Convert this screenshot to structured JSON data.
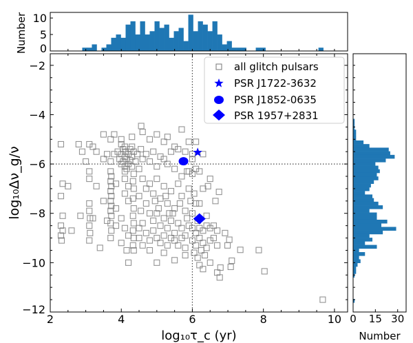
{
  "chart_data": [
    {
      "id": "main",
      "type": "scatter",
      "xlabel": "log₁₀τ_c (yr)",
      "ylabel": "log₁₀Δν_g/ν",
      "xlim": [
        2,
        10.37
      ],
      "ylim": [
        -12,
        -1.53
      ],
      "xticks": [
        2,
        4,
        6,
        8,
        10
      ],
      "xtick_labels": [
        "2",
        "4",
        "6",
        "8",
        "10"
      ],
      "yticks": [
        -2,
        -4,
        -6,
        -8,
        -10,
        -12
      ],
      "ytick_labels": [
        "−2",
        "−4",
        "−6",
        "−8",
        "−10",
        "−12"
      ],
      "reference_lines": {
        "x": 6,
        "y": -6
      },
      "legend_position": "top-right",
      "series": [
        {
          "name": "all glitch pulsars",
          "marker": "open-square",
          "color": "#808080",
          "points": [
            [
              4.56,
              -4.46
            ],
            [
              2.8,
              -5.2
            ],
            [
              3.1,
              -5.2
            ],
            [
              3.5,
              -4.8
            ],
            [
              3.7,
              -5.0
            ],
            [
              3.8,
              -4.8
            ],
            [
              4.0,
              -5.0
            ],
            [
              4.1,
              -5.3
            ],
            [
              4.3,
              -4.9
            ],
            [
              4.6,
              -4.7
            ],
            [
              4.8,
              -5.0
            ],
            [
              5.0,
              -4.8
            ],
            [
              5.2,
              -5.1
            ],
            [
              5.3,
              -4.9
            ],
            [
              5.5,
              -5.3
            ],
            [
              5.7,
              -4.6
            ],
            [
              5.9,
              -5.1
            ],
            [
              3.9,
              -5.5
            ],
            [
              3.95,
              -5.8
            ],
            [
              4.0,
              -5.6
            ],
            [
              4.0,
              -6.0
            ],
            [
              4.05,
              -5.4
            ],
            [
              4.05,
              -5.9
            ],
            [
              4.1,
              -5.7
            ],
            [
              4.1,
              -6.1
            ],
            [
              4.12,
              -5.5
            ],
            [
              4.15,
              -5.8
            ],
            [
              4.15,
              -6.2
            ],
            [
              4.2,
              -5.6
            ],
            [
              4.2,
              -6.0
            ],
            [
              4.25,
              -5.4
            ],
            [
              4.25,
              -5.85
            ],
            [
              4.3,
              -5.7
            ],
            [
              4.3,
              -6.1
            ],
            [
              4.35,
              -5.5
            ],
            [
              4.4,
              -5.9
            ],
            [
              4.45,
              -5.6
            ],
            [
              4.5,
              -6.2
            ],
            [
              4.55,
              -5.4
            ],
            [
              4.6,
              -5.8
            ],
            [
              4.7,
              -5.6
            ],
            [
              4.8,
              -5.9
            ],
            [
              4.9,
              -5.5
            ],
            [
              5.0,
              -6.1
            ],
            [
              5.1,
              -5.7
            ],
            [
              5.2,
              -5.8
            ],
            [
              5.3,
              -6.0
            ],
            [
              5.4,
              -5.5
            ],
            [
              5.5,
              -6.2
            ],
            [
              5.6,
              -5.4
            ],
            [
              5.8,
              -5.5
            ],
            [
              5.9,
              -6.3
            ],
            [
              5.7,
              -6.5
            ],
            [
              6.0,
              -5.8
            ],
            [
              6.1,
              -6.2
            ],
            [
              3.8,
              -5.6
            ],
            [
              3.7,
              -5.9
            ],
            [
              3.6,
              -5.6
            ],
            [
              3.5,
              -5.8
            ],
            [
              3.3,
              -5.5
            ],
            [
              4.0,
              -5.2
            ],
            [
              4.3,
              -5.3
            ],
            [
              4.1,
              -6.3
            ],
            [
              3.7,
              -6.3
            ],
            [
              3.72,
              -6.5
            ],
            [
              3.7,
              -6.7
            ],
            [
              3.72,
              -6.9
            ],
            [
              3.7,
              -7.1
            ],
            [
              3.72,
              -7.3
            ],
            [
              3.7,
              -7.5
            ],
            [
              3.72,
              -7.7
            ],
            [
              3.7,
              -7.9
            ],
            [
              3.72,
              -8.1
            ],
            [
              3.7,
              -8.4
            ],
            [
              3.72,
              -8.7
            ],
            [
              3.7,
              -9.0
            ],
            [
              3.85,
              -6.8
            ],
            [
              3.85,
              -7.8
            ],
            [
              3.85,
              -8.5
            ],
            [
              4.35,
              -6.4
            ],
            [
              4.33,
              -6.7
            ],
            [
              4.35,
              -7.0
            ],
            [
              4.33,
              -7.4
            ],
            [
              4.35,
              -7.8
            ],
            [
              4.33,
              -8.1
            ],
            [
              4.35,
              -8.4
            ],
            [
              4.33,
              -8.7
            ],
            [
              4.35,
              -9.0
            ],
            [
              4.33,
              -9.3
            ],
            [
              4.35,
              -9.5
            ],
            [
              4.5,
              -9.0
            ],
            [
              4.5,
              -8.6
            ],
            [
              4.1,
              -6.6
            ],
            [
              4.2,
              -6.9
            ],
            [
              4.1,
              -7.2
            ],
            [
              4.2,
              -7.5
            ],
            [
              4.0,
              -8.2
            ],
            [
              4.1,
              -8.6
            ],
            [
              4.2,
              -8.9
            ],
            [
              4.0,
              -9.2
            ],
            [
              4.15,
              -9.5
            ],
            [
              4.2,
              -10.0
            ],
            [
              2.3,
              -5.2
            ],
            [
              2.35,
              -6.8
            ],
            [
              2.3,
              -7.3
            ],
            [
              2.35,
              -8.1
            ],
            [
              2.3,
              -8.5
            ],
            [
              2.35,
              -8.7
            ],
            [
              2.3,
              -8.9
            ],
            [
              2.32,
              -9.1
            ],
            [
              2.5,
              -6.9
            ],
            [
              2.6,
              -8.7
            ],
            [
              3.1,
              -6.3
            ],
            [
              3.1,
              -6.6
            ],
            [
              3.1,
              -7.6
            ],
            [
              3.1,
              -7.9
            ],
            [
              3.12,
              -8.2
            ],
            [
              3.1,
              -8.5
            ],
            [
              3.12,
              -8.8
            ],
            [
              3.1,
              -9.1
            ],
            [
              2.85,
              -8.1
            ],
            [
              3.2,
              -8.2
            ],
            [
              3.3,
              -6.9
            ],
            [
              3.5,
              -7.5
            ],
            [
              3.6,
              -8.3
            ],
            [
              3.4,
              -9.4
            ],
            [
              3.0,
              -5.9
            ],
            [
              3.2,
              -5.3
            ],
            [
              2.9,
              -5.5
            ],
            [
              4.6,
              -6.6
            ],
            [
              4.8,
              -6.8
            ],
            [
              4.7,
              -7.0
            ],
            [
              4.9,
              -7.2
            ],
            [
              5.0,
              -6.6
            ],
            [
              5.1,
              -7.4
            ],
            [
              5.2,
              -6.9
            ],
            [
              5.3,
              -7.6
            ],
            [
              5.4,
              -7.1
            ],
            [
              5.5,
              -7.8
            ],
            [
              5.6,
              -6.8
            ],
            [
              5.7,
              -7.3
            ],
            [
              5.8,
              -7.9
            ],
            [
              5.9,
              -7.0
            ],
            [
              4.7,
              -7.6
            ],
            [
              4.8,
              -8.0
            ],
            [
              4.9,
              -8.3
            ],
            [
              5.0,
              -8.0
            ],
            [
              5.1,
              -8.5
            ],
            [
              5.2,
              -8.2
            ],
            [
              5.3,
              -8.6
            ],
            [
              5.4,
              -8.3
            ],
            [
              5.5,
              -8.8
            ],
            [
              5.6,
              -8.4
            ],
            [
              5.7,
              -8.6
            ],
            [
              5.8,
              -8.9
            ],
            [
              5.9,
              -8.5
            ],
            [
              4.6,
              -8.4
            ],
            [
              4.7,
              -8.8
            ],
            [
              4.8,
              -9.1
            ],
            [
              4.9,
              -8.7
            ],
            [
              5.0,
              -9.0
            ],
            [
              5.1,
              -9.2
            ],
            [
              5.2,
              -8.9
            ],
            [
              5.3,
              -9.3
            ],
            [
              5.4,
              -9.0
            ],
            [
              5.5,
              -9.1
            ],
            [
              5.6,
              -9.3
            ],
            [
              5.7,
              -9.0
            ],
            [
              5.8,
              -9.4
            ],
            [
              4.5,
              -7.3
            ],
            [
              4.55,
              -7.9
            ],
            [
              5.05,
              -7.8
            ],
            [
              5.25,
              -7.3
            ],
            [
              5.45,
              -8.0
            ],
            [
              5.65,
              -7.6
            ],
            [
              5.85,
              -8.2
            ],
            [
              5.95,
              -7.5
            ],
            [
              5.2,
              -9.6
            ],
            [
              4.8,
              -9.5
            ],
            [
              5.0,
              -10.0
            ],
            [
              5.5,
              -9.9
            ],
            [
              5.8,
              -9.7
            ],
            [
              4.6,
              -9.3
            ],
            [
              5.35,
              -8.0
            ],
            [
              4.95,
              -7.5
            ],
            [
              6.0,
              -6.4
            ],
            [
              6.05,
              -7.2
            ],
            [
              6.1,
              -7.6
            ],
            [
              6.0,
              -8.0
            ],
            [
              6.3,
              -7.0
            ],
            [
              6.44,
              -6.9
            ],
            [
              6.75,
              -7.13
            ],
            [
              6.65,
              -7.5
            ],
            [
              6.5,
              -6.6
            ],
            [
              6.2,
              -7.6
            ],
            [
              6.0,
              -8.6
            ],
            [
              6.1,
              -8.8
            ],
            [
              6.2,
              -8.6
            ],
            [
              6.3,
              -8.7
            ],
            [
              6.4,
              -8.5
            ],
            [
              6.5,
              -8.6
            ],
            [
              6.6,
              -8.5
            ],
            [
              6.7,
              -8.7
            ],
            [
              6.92,
              -8.8
            ],
            [
              6.0,
              -9.1
            ],
            [
              6.1,
              -9.3
            ],
            [
              6.2,
              -9.0
            ],
            [
              6.3,
              -9.2
            ],
            [
              6.4,
              -9.4
            ],
            [
              6.5,
              -9.1
            ],
            [
              6.6,
              -9.0
            ],
            [
              6.7,
              -9.3
            ],
            [
              7.04,
              -9.07
            ],
            [
              6.99,
              -9.3
            ],
            [
              6.05,
              -9.6
            ],
            [
              6.15,
              -9.8
            ],
            [
              6.25,
              -9.5
            ],
            [
              6.35,
              -9.7
            ],
            [
              6.5,
              -10.0
            ],
            [
              6.3,
              -10.26
            ],
            [
              7.11,
              -9.92
            ],
            [
              7.08,
              -10.17
            ],
            [
              6.79,
              -10.2
            ],
            [
              6.7,
              -10.4
            ],
            [
              6.77,
              -10.6
            ],
            [
              6.2,
              -10.1
            ],
            [
              7.35,
              -9.48
            ],
            [
              7.87,
              -9.49
            ],
            [
              8.03,
              -10.35
            ],
            [
              9.67,
              -11.5
            ],
            [
              6.1,
              -5.1
            ],
            [
              6.0,
              -5.6
            ],
            [
              6.3,
              -5.6
            ],
            [
              5.85,
              -6.3
            ],
            [
              6.2,
              -6.3
            ],
            [
              6.4,
              -8.1
            ],
            [
              6.15,
              -8.3
            ]
          ]
        },
        {
          "name": "PSR J1722-3632",
          "marker": "star",
          "color": "#0000ff",
          "points": [
            [
              6.15,
              -5.53
            ]
          ]
        },
        {
          "name": "PSR J1852-0635",
          "marker": "circle",
          "color": "#0000ff",
          "points": [
            [
              5.75,
              -5.89
            ]
          ]
        },
        {
          "name": "PSR 1957+2831",
          "marker": "diamond",
          "color": "#0000ff",
          "points": [
            [
              6.2,
              -8.22
            ]
          ]
        }
      ]
    },
    {
      "id": "top-hist",
      "type": "bar",
      "orientation": "vertical",
      "ylabel": "Number",
      "ylim": [
        0,
        11.7
      ],
      "yticks": [
        0,
        5,
        10
      ],
      "ytick_labels": [
        "0",
        "5",
        "10"
      ],
      "bin_start": 2.9,
      "bin_width": 0.1357,
      "counts": [
        1,
        1,
        2,
        0,
        1,
        2,
        4,
        5,
        4,
        8,
        9,
        5,
        9,
        5,
        6,
        9,
        7,
        8,
        4,
        6,
        7,
        3,
        11,
        6,
        9,
        8,
        6,
        9,
        5,
        2,
        3,
        1,
        1,
        1,
        0,
        0,
        1,
        1,
        0,
        0,
        0,
        0,
        0,
        0,
        0,
        0,
        0,
        0,
        0,
        1
      ],
      "color": "#1f77b4"
    },
    {
      "id": "right-hist",
      "type": "bar",
      "orientation": "horizontal",
      "xlabel": "Number",
      "xlim": [
        0,
        35.7
      ],
      "xticks": [
        0,
        15,
        30
      ],
      "xtick_labels": [
        "0",
        "15",
        "30"
      ],
      "bin_start": -4.17,
      "bin_width": -0.146,
      "counts": [
        1,
        1,
        1,
        2,
        2,
        2,
        7,
        11,
        24,
        25,
        28,
        22,
        15,
        17,
        18,
        16,
        17,
        14,
        12,
        11,
        8,
        13,
        14,
        17,
        20,
        11,
        16,
        16,
        23,
        19,
        29,
        20,
        11,
        13,
        8,
        16,
        4,
        8,
        4,
        5,
        3,
        2,
        2,
        1,
        0,
        0,
        0,
        0,
        0,
        0,
        1
      ],
      "color": "#1f77b4"
    }
  ]
}
